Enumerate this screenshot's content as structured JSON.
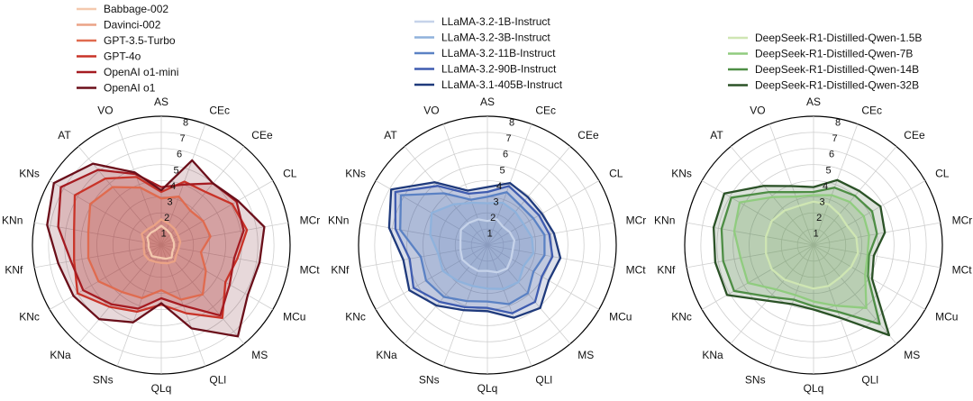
{
  "chart_data": [
    {
      "type": "radar",
      "axes": [
        "AS",
        "CEc",
        "CEe",
        "CL",
        "MCr",
        "MCt",
        "MCu",
        "MS",
        "QLl",
        "QLq",
        "SNs",
        "KNa",
        "KNc",
        "KNf",
        "KNn",
        "KNs",
        "AT",
        "VO"
      ],
      "rlim": [
        0,
        8
      ],
      "ticks": [
        "1",
        "2",
        "3",
        "4",
        "5",
        "6",
        "7",
        "8"
      ],
      "series": [
        {
          "name": "Babbage-002",
          "color": "#f4c9ae",
          "values": [
            1.2,
            1.0,
            0.9,
            0.8,
            0.8,
            0.8,
            0.8,
            1.0,
            0.9,
            0.8,
            0.8,
            0.9,
            0.8,
            0.8,
            0.8,
            1.0,
            1.0,
            1.0
          ]
        },
        {
          "name": "Davinci-002",
          "color": "#eba386",
          "values": [
            1.6,
            1.4,
            1.3,
            1.2,
            1.2,
            1.1,
            1.1,
            1.3,
            1.2,
            1.1,
            1.1,
            1.2,
            1.2,
            1.1,
            1.1,
            1.4,
            1.3,
            1.3
          ]
        },
        {
          "name": "GPT-3.5-Turbo",
          "color": "#e06b4f",
          "values": [
            2.9,
            3.2,
            2.8,
            3.0,
            3.1,
            2.5,
            3.2,
            4.0,
            3.6,
            2.8,
            3.5,
            3.8,
            4.5,
            4.6,
            4.6,
            5.1,
            4.7,
            3.8
          ]
        },
        {
          "name": "GPT-4o",
          "color": "#c93328",
          "values": [
            3.3,
            4.2,
            4.3,
            5.1,
            5.4,
            4.8,
            4.6,
            5.9,
            4.5,
            3.7,
            4.4,
            5.0,
            6.0,
            5.5,
            5.5,
            6.2,
            5.4,
            4.5
          ]
        },
        {
          "name": "OpenAI o1-mini",
          "color": "#a51b21",
          "values": [
            3.6,
            4.0,
            5.0,
            5.4,
            5.2,
            4.6,
            4.9,
            5.7,
            4.0,
            3.3,
            4.2,
            4.8,
            5.6,
            5.7,
            6.5,
            7.2,
            6.1,
            4.7
          ]
        },
        {
          "name": "OpenAI o1",
          "color": "#6b0f1a",
          "values": [
            3.4,
            5.6,
            5.0,
            5.5,
            6.5,
            6.2,
            6.2,
            7.4,
            5.5,
            3.6,
            5.1,
            6.0,
            6.3,
            6.5,
            7.2,
            7.7,
            6.6,
            4.8
          ]
        }
      ]
    },
    {
      "type": "radar",
      "axes": [
        "AS",
        "CEc",
        "CEe",
        "CL",
        "MCr",
        "MCt",
        "MCu",
        "MS",
        "QLl",
        "QLq",
        "SNs",
        "KNa",
        "KNc",
        "KNf",
        "KNn",
        "KNs",
        "AT",
        "VO"
      ],
      "rlim": [
        0,
        8
      ],
      "ticks": [
        "1",
        "2",
        "3",
        "4",
        "5",
        "6",
        "7",
        "8"
      ],
      "series": [
        {
          "name": "LLaMA-3.2-1B-Instruct",
          "color": "#c6d3ea",
          "values": [
            1.5,
            1.7,
            1.5,
            1.6,
            1.7,
            1.6,
            1.7,
            1.9,
            1.8,
            1.6,
            1.7,
            1.7,
            1.8,
            1.7,
            1.7,
            1.9,
            1.8,
            1.7
          ]
        },
        {
          "name": "LLaMA-3.2-3B-Instruct",
          "color": "#8fb2dc",
          "values": [
            2.6,
            2.8,
            2.7,
            2.6,
            2.8,
            2.9,
            2.6,
            3.0,
            2.9,
            2.7,
            2.7,
            2.9,
            3.2,
            3.1,
            3.6,
            4.0,
            3.3,
            2.8
          ]
        },
        {
          "name": "LLaMA-3.2-11B-Instruct",
          "color": "#5b82c4",
          "values": [
            3.0,
            3.5,
            3.2,
            3.3,
            3.6,
            3.6,
            3.3,
            3.9,
            3.9,
            3.5,
            3.7,
            4.2,
            4.4,
            4.2,
            5.5,
            6.2,
            4.2,
            3.0
          ]
        },
        {
          "name": "LLaMA-3.2-90B-Instruct",
          "color": "#3f5cb0",
          "values": [
            3.3,
            3.9,
            3.6,
            3.7,
            3.9,
            4.1,
            3.9,
            4.6,
            4.5,
            3.9,
            4.1,
            4.6,
            5.3,
            4.9,
            5.8,
            6.6,
            4.8,
            3.4
          ]
        },
        {
          "name": "LLaMA-3.1-405B-Instruct",
          "color": "#1f3a7c",
          "values": [
            3.6,
            4.1,
            3.9,
            3.9,
            4.2,
            4.6,
            4.4,
            5.1,
            4.8,
            4.1,
            4.3,
            4.9,
            5.6,
            5.3,
            6.2,
            6.9,
            5.1,
            3.6
          ]
        }
      ]
    },
    {
      "type": "radar",
      "axes": [
        "AS",
        "CEc",
        "CEe",
        "CL",
        "MCr",
        "MCt",
        "MCu",
        "MS",
        "QLl",
        "QLq",
        "SNs",
        "KNa",
        "KNc",
        "KNf",
        "KNn",
        "KNs",
        "AT",
        "VO"
      ],
      "rlim": [
        0,
        8
      ],
      "ticks": [
        "1",
        "2",
        "3",
        "4",
        "5",
        "6",
        "7",
        "8"
      ],
      "series": [
        {
          "name": "DeepSeek-R1-Distilled-Qwen-1.5B",
          "color": "#cfe6b3",
          "values": [
            2.7,
            2.7,
            2.5,
            2.4,
            2.7,
            2.8,
            2.7,
            2.6,
            2.7,
            2.7,
            2.6,
            2.8,
            3.0,
            3.0,
            3.0,
            3.0,
            2.8,
            2.6
          ]
        },
        {
          "name": "DeepSeek-R1-Distilled-Qwen-7B",
          "color": "#90cc7f",
          "values": [
            3.1,
            3.3,
            3.5,
            3.6,
            3.5,
            3.4,
            3.7,
            5.1,
            4.0,
            3.5,
            3.3,
            3.6,
            4.7,
            4.6,
            5.0,
            5.3,
            3.9,
            3.2
          ]
        },
        {
          "name": "DeepSeek-R1-Distilled-Qwen-14B",
          "color": "#4e8e45",
          "values": [
            3.3,
            3.8,
            4.0,
            4.2,
            4.0,
            3.5,
            3.9,
            6.4,
            4.4,
            3.8,
            3.6,
            4.2,
            5.7,
            5.7,
            5.8,
            5.9,
            4.3,
            3.5
          ]
        },
        {
          "name": "DeepSeek-R1-Distilled-Qwen-32B",
          "color": "#2b5227",
          "values": [
            3.6,
            4.3,
            4.4,
            4.8,
            4.5,
            3.8,
            4.2,
            7.3,
            4.8,
            4.0,
            3.9,
            4.5,
            6.2,
            6.2,
            6.3,
            6.4,
            4.8,
            3.9
          ]
        }
      ]
    }
  ]
}
